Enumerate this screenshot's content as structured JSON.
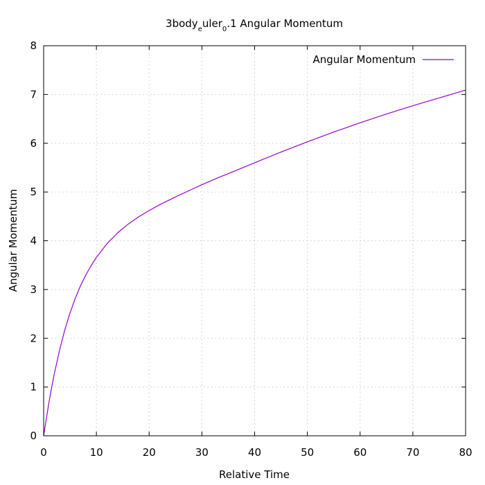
{
  "chart_data": {
    "type": "line",
    "title_parts": [
      {
        "text": "3body",
        "sub": false
      },
      {
        "text": "e",
        "sub": true
      },
      {
        "text": "uler",
        "sub": false
      },
      {
        "text": "0",
        "sub": true
      },
      {
        "text": ".1 Angular Momentum",
        "sub": false
      }
    ],
    "xlabel": "Relative Time",
    "ylabel": "Angular Momentum",
    "xlim": [
      0,
      80
    ],
    "ylim": [
      0,
      8
    ],
    "xticks": [
      0,
      10,
      20,
      30,
      40,
      50,
      60,
      70,
      80
    ],
    "yticks": [
      0,
      1,
      2,
      3,
      4,
      5,
      6,
      7,
      8
    ],
    "grid": true,
    "legend_position": "top-right",
    "series": [
      {
        "name": "Angular Momentum",
        "color": "#9400d3",
        "points": [
          [
            0,
            0.0
          ],
          [
            0.5,
            0.35
          ],
          [
            1,
            0.68
          ],
          [
            1.5,
            0.98
          ],
          [
            2,
            1.26
          ],
          [
            3,
            1.75
          ],
          [
            4,
            2.17
          ],
          [
            5,
            2.52
          ],
          [
            6,
            2.82
          ],
          [
            7,
            3.08
          ],
          [
            8,
            3.3
          ],
          [
            9,
            3.49
          ],
          [
            10,
            3.66
          ],
          [
            12,
            3.94
          ],
          [
            14,
            4.16
          ],
          [
            16,
            4.34
          ],
          [
            18,
            4.49
          ],
          [
            20,
            4.62
          ],
          [
            22,
            4.74
          ],
          [
            25,
            4.9
          ],
          [
            28,
            5.05
          ],
          [
            30,
            5.15
          ],
          [
            33,
            5.29
          ],
          [
            36,
            5.42
          ],
          [
            40,
            5.6
          ],
          [
            45,
            5.82
          ],
          [
            50,
            6.03
          ],
          [
            55,
            6.23
          ],
          [
            60,
            6.42
          ],
          [
            65,
            6.6
          ],
          [
            70,
            6.77
          ],
          [
            75,
            6.93
          ],
          [
            80,
            7.09
          ]
        ]
      }
    ]
  }
}
